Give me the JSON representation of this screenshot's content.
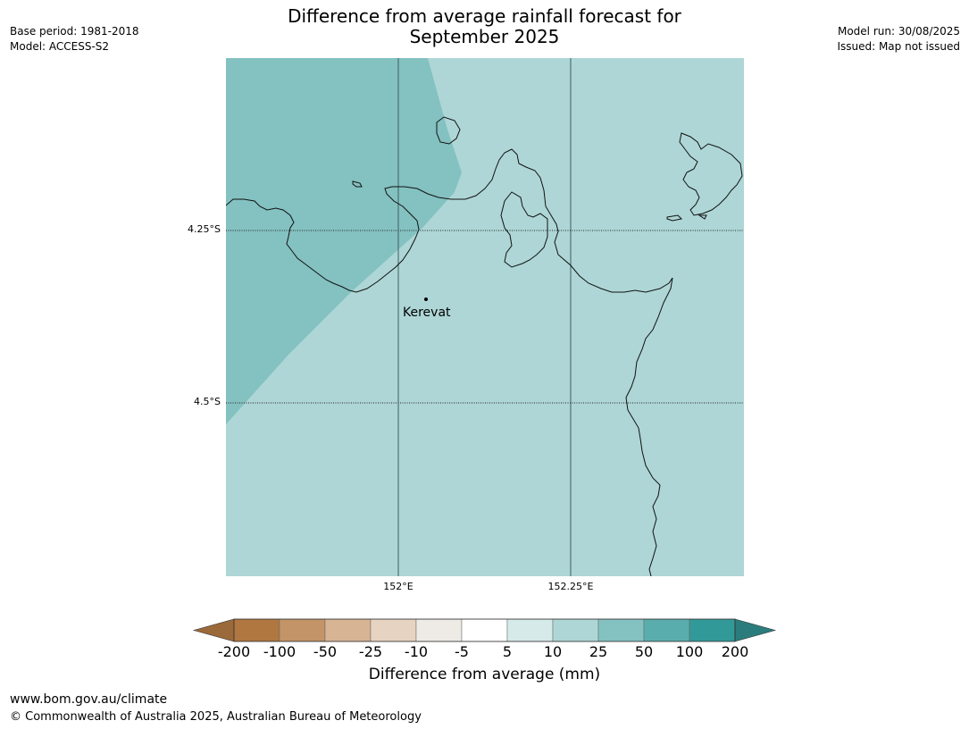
{
  "title_line1": "Difference from average rainfall forecast for",
  "title_line2": "September 2025",
  "header_left": {
    "base_period": "Base period: 1981-2018",
    "model": "Model: ACCESS-S2"
  },
  "header_right": {
    "model_run": "Model run: 30/08/2025",
    "issued": "Issued: Map not issued"
  },
  "map": {
    "latitude_labels": [
      "4.25°S",
      "4.5°S"
    ],
    "longitude_labels": [
      "152°E",
      "152.25°E"
    ],
    "place_label": "Kerevat",
    "zone_colors": {
      "background": "#aed6d6",
      "wetter_zone": "#84c1c1"
    }
  },
  "colorbar": {
    "ticks": [
      "-200",
      "-100",
      "-50",
      "-25",
      "-10",
      "-5",
      "5",
      "10",
      "25",
      "50",
      "100",
      "200"
    ],
    "colors": [
      "#9b6a3a",
      "#b07740",
      "#c39467",
      "#d6b494",
      "#e6d3c1",
      "#eeebe7",
      "#ffffff",
      "#d6eaea",
      "#aed6d6",
      "#84c1c1",
      "#5aadad",
      "#329999",
      "#2b7d7d"
    ],
    "label": "Difference from average (mm)"
  },
  "footer": {
    "url": "www.bom.gov.au/climate",
    "copyright": "© Commonwealth of Australia 2025, Australian Bureau of Meteorology"
  }
}
